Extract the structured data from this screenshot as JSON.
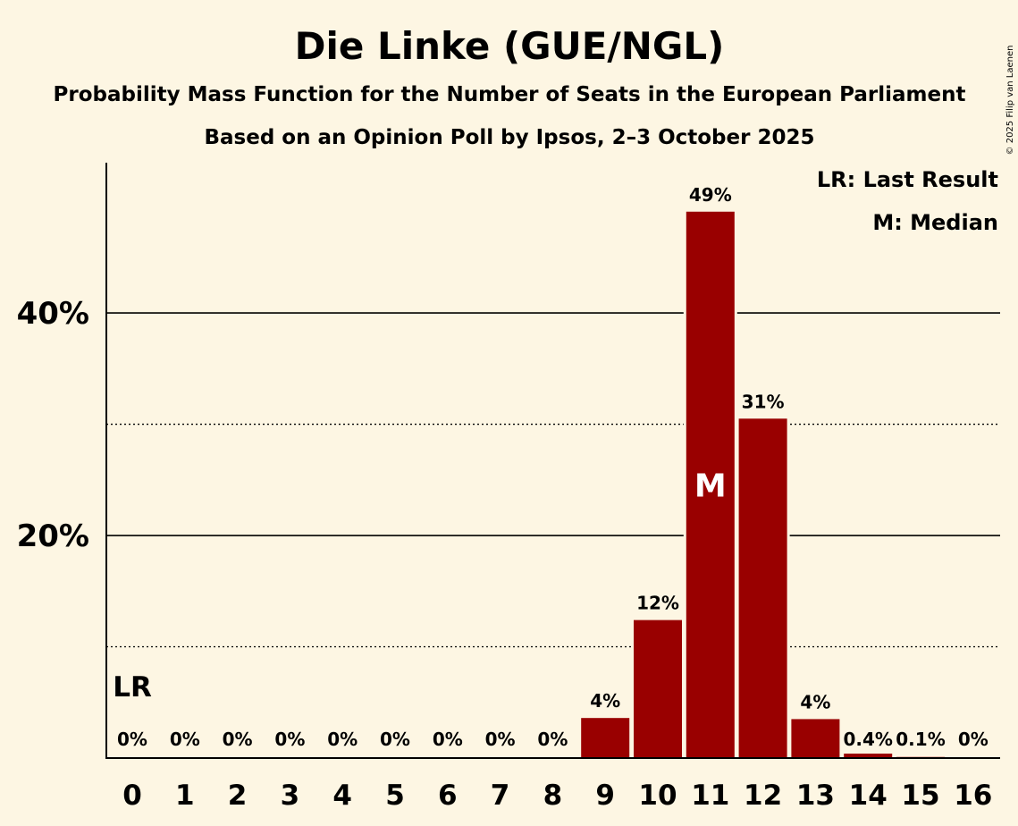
{
  "chart_data": {
    "type": "bar",
    "title": "Die Linke (GUE/NGL)",
    "subtitle": "Probability Mass Function for the Number of Seats in the European Parliament",
    "subtitle2": "Based on an Opinion Poll by Ipsos, 2–3 October 2025",
    "copyright": "© 2025 Filip van Laenen",
    "categories": [
      "0",
      "1",
      "2",
      "3",
      "4",
      "5",
      "6",
      "7",
      "8",
      "9",
      "10",
      "11",
      "12",
      "13",
      "14",
      "15",
      "16"
    ],
    "values": [
      0,
      0,
      0,
      0,
      0,
      0,
      0,
      0,
      0,
      3.6,
      12.4,
      49.1,
      30.5,
      3.5,
      0.4,
      0.1,
      0
    ],
    "data_labels": [
      "0%",
      "0%",
      "0%",
      "0%",
      "0%",
      "0%",
      "0%",
      "0%",
      "0%",
      "4%",
      "12%",
      "49%",
      "31%",
      "4%",
      "0.4%",
      "0.1%",
      "0%"
    ],
    "ylim": [
      0,
      53.5
    ],
    "yticks": [
      {
        "value": 20,
        "label": "20%"
      },
      {
        "value": 40,
        "label": "40%"
      }
    ],
    "minor_gridlines": [
      10,
      30
    ],
    "last_result_index": 0,
    "last_result_label": "LR",
    "median_index": 11,
    "median_label": "M",
    "legend": [
      "LR: Last Result",
      "M: Median"
    ],
    "legend_position": "top-right",
    "bar_color": "#990000",
    "background_color": "#fdf6e3",
    "xlabel": "",
    "ylabel": ""
  }
}
